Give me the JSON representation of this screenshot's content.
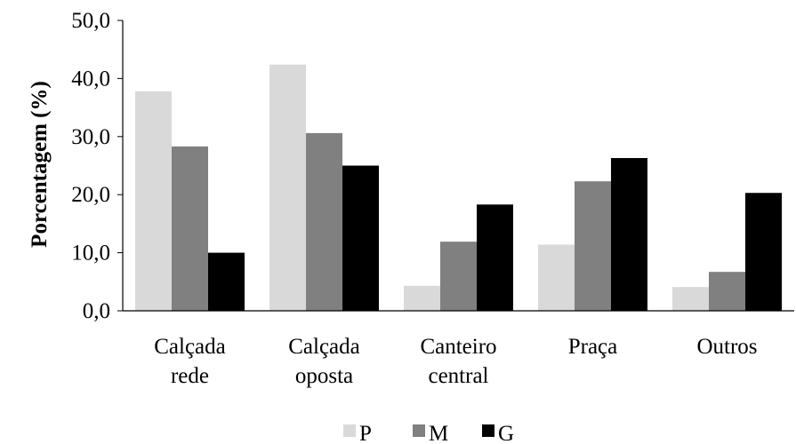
{
  "chart_data": {
    "type": "bar",
    "title": "",
    "xlabel": "",
    "ylabel": "Porcentagem (%)",
    "ylim": [
      0,
      50
    ],
    "yticks": [
      "0,0",
      "10,0",
      "20,0",
      "30,0",
      "40,0",
      "50,0"
    ],
    "categories": [
      [
        "Calçada",
        "rede"
      ],
      [
        "Calçada",
        "oposta"
      ],
      [
        "Canteiro",
        "central"
      ],
      [
        "Praça"
      ],
      [
        "Outros"
      ]
    ],
    "series": [
      {
        "name": "P",
        "color": "#d9d9d9",
        "values": [
          37.8,
          42.4,
          4.3,
          11.4,
          4.1
        ]
      },
      {
        "name": "M",
        "color": "#808080",
        "values": [
          28.3,
          30.6,
          11.9,
          22.3,
          6.7
        ]
      },
      {
        "name": "G",
        "color": "#000000",
        "values": [
          10.0,
          25.0,
          18.3,
          26.3,
          20.3
        ]
      }
    ],
    "grid": false,
    "legend_position": "bottom-center"
  }
}
